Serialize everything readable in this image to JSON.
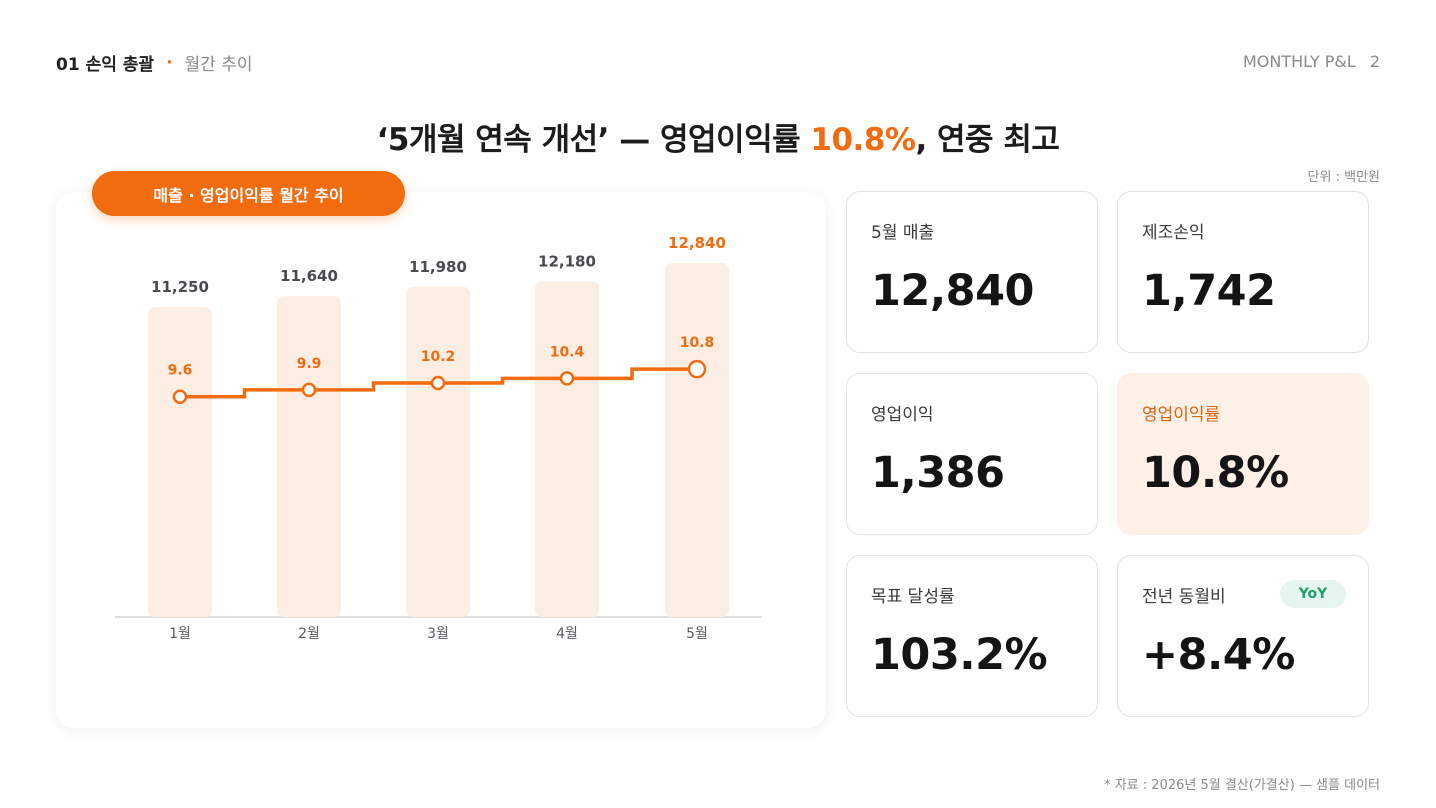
{
  "header": {
    "section": "01 손익 총괄",
    "separator": "·",
    "subtitle": "월간 추이",
    "right_label": "MONTHLY P&L",
    "page_number": "2"
  },
  "headline": {
    "prefix": "‘5개월 연속 개선’ — 영업이익률 ",
    "highlight": "10.8%",
    "suffix": ", 연중 최고"
  },
  "unit_label": "단위 : 백만원",
  "chart_pill": "매출 · 영업이익률 월간 추이",
  "chart_data": {
    "type": "bar",
    "title": "매출 · 영업이익률 월간 추이",
    "categories": [
      "1월",
      "2월",
      "3월",
      "4월",
      "5월"
    ],
    "series": [
      {
        "type": "bar",
        "values": [
          11250,
          11640,
          11980,
          12180,
          12840
        ],
        "labels": [
          "11,250",
          "11,640",
          "11,980",
          "12,180",
          "12,840"
        ]
      },
      {
        "type": "line",
        "values": [
          9.6,
          9.9,
          10.2,
          10.4,
          10.8
        ],
        "labels": [
          "9.6",
          "9.9",
          "10.2",
          "10.4",
          "10.8"
        ]
      }
    ],
    "bar_ylim": [
      0,
      13300
    ],
    "line_ylim": [
      0,
      13.9
    ],
    "grid": false,
    "colors": {
      "bar": "#fdeee4",
      "line": "#f26b0f",
      "label_dark": "#4a4a50",
      "label_accent": "#f26b0f",
      "axis": "#d6d6da"
    }
  },
  "kpis": [
    {
      "label": "5월 매출",
      "value": "12,840"
    },
    {
      "label": "제조손익",
      "value": "1,742"
    },
    {
      "label": "영업이익",
      "value": "1,386"
    },
    {
      "label": "영업이익률",
      "value": "10.8%"
    },
    {
      "label": "목표 달성률",
      "value": "103.2%"
    },
    {
      "label": "전년 동월비",
      "value": "+8.4%",
      "badge": "YoY"
    }
  ],
  "footnote": "* 자료 : 2026년 5월 결산(가결산) — 샘플 데이터"
}
